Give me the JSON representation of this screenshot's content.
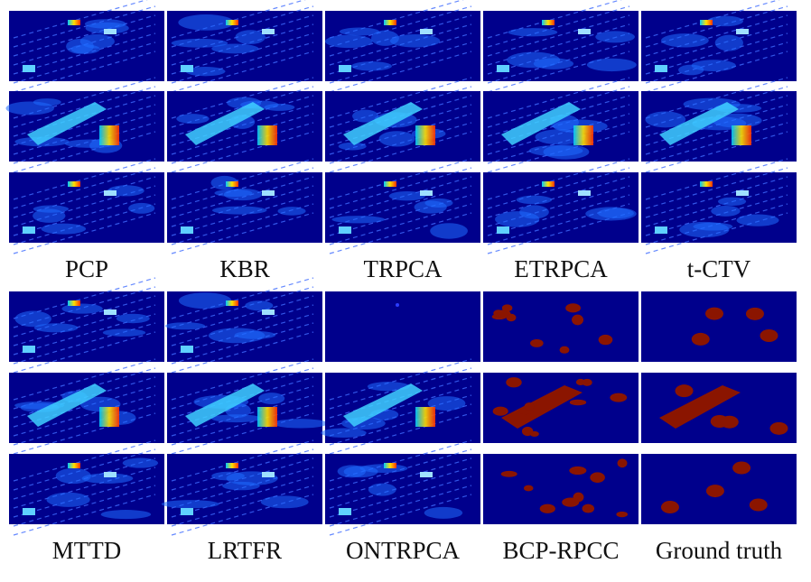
{
  "labels_top": [
    "PCP",
    "KBR",
    "TRPCA",
    "ETRPCA",
    "t-CTV"
  ],
  "labels_bottom": [
    "MTTD",
    "LRTFR",
    "ONTRPCA",
    "BCP-RPCC",
    "Ground truth"
  ]
}
